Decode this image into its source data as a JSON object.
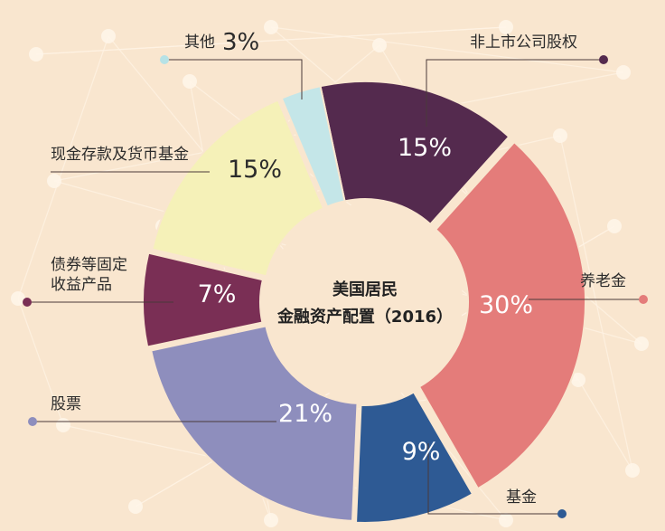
{
  "chart_data": {
    "type": "pie",
    "title_lines": [
      "美国居民",
      "金融资产配置（2016）"
    ],
    "unit": "%",
    "series": [
      {
        "label": "非上市公司股权",
        "value": 15,
        "display": "15%",
        "color": "#542a4e"
      },
      {
        "label": "养老金",
        "value": 30,
        "display": "30%",
        "color": "#e47c7a"
      },
      {
        "label": "基金",
        "value": 9,
        "display": "9%",
        "color": "#2e5a94"
      },
      {
        "label": "股票",
        "value": 21,
        "display": "21%",
        "color": "#8e8ebd"
      },
      {
        "label_lines": [
          "债券等固定",
          "收益产品"
        ],
        "value": 7,
        "display": "7%",
        "color": "#7a2f55"
      },
      {
        "label": "现金存款及货币基金",
        "value": 15,
        "display": "15%",
        "color": "#f5f1b8"
      },
      {
        "label": "其他",
        "value": 3,
        "display": "3%",
        "color": "#c4e6e8"
      }
    ]
  }
}
